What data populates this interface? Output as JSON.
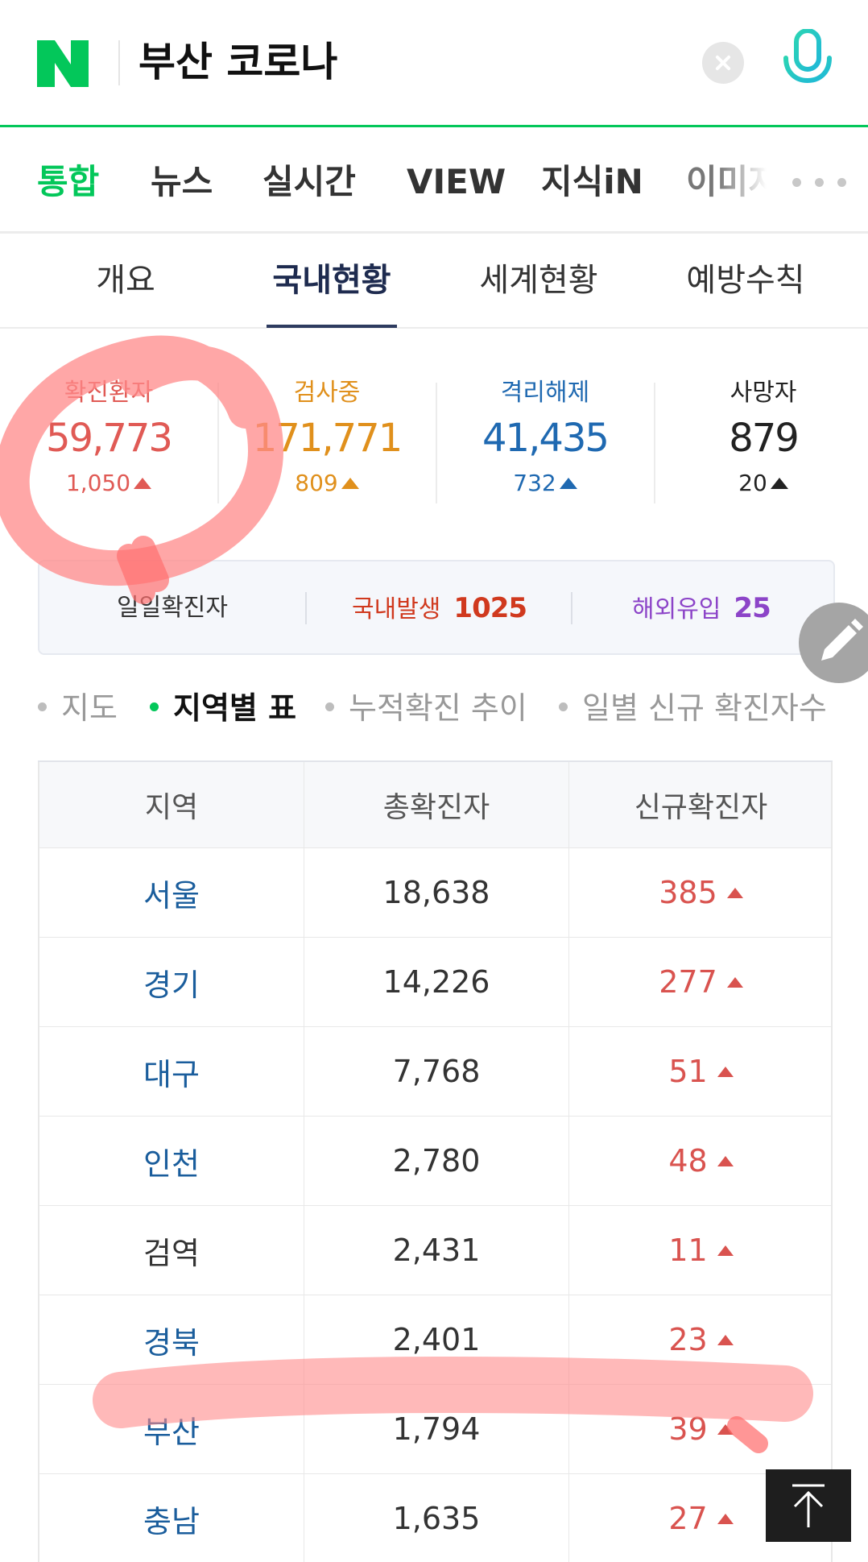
{
  "search": {
    "query": "부산 코로나",
    "logo_icon": "naver-n-logo-icon",
    "clear_icon": "close-icon",
    "mic_icon": "microphone-icon",
    "brand_color": "#03c75a"
  },
  "tabs": [
    {
      "label": "통합",
      "active": true
    },
    {
      "label": "뉴스"
    },
    {
      "label": "실시간"
    },
    {
      "label": "VIEW"
    },
    {
      "label": "지식iN"
    },
    {
      "label": "이미지"
    }
  ],
  "subtabs": [
    {
      "label": "개요"
    },
    {
      "label": "국내현황",
      "active": true
    },
    {
      "label": "세계현황"
    },
    {
      "label": "예방수칙"
    }
  ],
  "stats": [
    {
      "label": "확진환자",
      "value": "59,773",
      "delta": "1,050",
      "color": "#e05a55"
    },
    {
      "label": "검사중",
      "value": "171,771",
      "delta": "809",
      "color": "#e0901c"
    },
    {
      "label": "격리해제",
      "value": "41,435",
      "delta": "732",
      "color": "#1f69b1"
    },
    {
      "label": "사망자",
      "value": "879",
      "delta": "20",
      "color": "#222222"
    }
  ],
  "daily": {
    "label": "일일확진자",
    "domestic_label": "국내발생",
    "domestic_value": "1025",
    "overseas_label": "해외유입",
    "overseas_value": "25",
    "domestic_color": "#d0391e",
    "overseas_color": "#8c44c8"
  },
  "view_options": [
    {
      "label": "지도"
    },
    {
      "label": "지역별 표",
      "active": true
    },
    {
      "label": "누적확진 추이"
    },
    {
      "label": "일별 신규 확진자수"
    }
  ],
  "table": {
    "headers": [
      "지역",
      "총확진자",
      "신규확진자"
    ],
    "rows": [
      {
        "region": "서울",
        "total": "18,638",
        "new": "385",
        "link": true
      },
      {
        "region": "경기",
        "total": "14,226",
        "new": "277",
        "link": true
      },
      {
        "region": "대구",
        "total": "7,768",
        "new": "51",
        "link": true
      },
      {
        "region": "인천",
        "total": "2,780",
        "new": "48",
        "link": true
      },
      {
        "region": "검역",
        "total": "2,431",
        "new": "11",
        "link": false
      },
      {
        "region": "경북",
        "total": "2,401",
        "new": "23",
        "link": true
      },
      {
        "region": "부산",
        "total": "1,794",
        "new": "39",
        "link": true
      },
      {
        "region": "충남",
        "total": "1,635",
        "new": "27",
        "link": true
      }
    ]
  },
  "floating": {
    "edit_icon": "pencil-icon",
    "top_icon": "arrow-up-to-top-icon"
  },
  "annotations": {
    "highlight_color": "#ff8a8a"
  }
}
